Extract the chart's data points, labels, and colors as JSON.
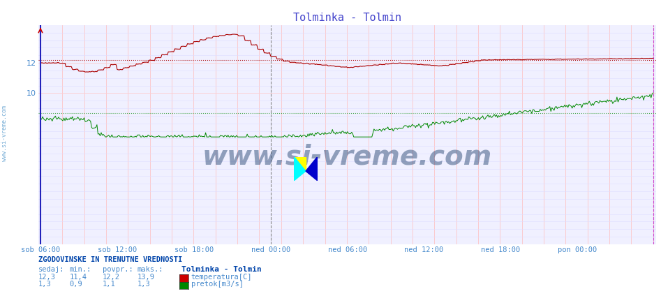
{
  "title": "Tolminka - Tolmin",
  "title_color": "#4444cc",
  "bg_color": "#ffffff",
  "plot_bg_color": "#f0f0ff",
  "grid_color_v": "#ffcccc",
  "grid_color_h": "#ccccff",
  "temp_color": "#aa0000",
  "flow_color": "#008800",
  "avg_temp_color": "#aa0000",
  "avg_flow_color": "#008800",
  "axis_color": "#2222bb",
  "vline_ned_color": "#aaaaaa",
  "vline_pon_color": "#cc00cc",
  "tick_color": "#4488cc",
  "n_points": 576,
  "temp_min": 11.4,
  "temp_max": 13.9,
  "temp_avg": 12.2,
  "temp_current": 12.3,
  "flow_min": 0.9,
  "flow_max": 1.3,
  "flow_avg": 1.1,
  "flow_current": 1.3,
  "ylim_temp": [
    9.5,
    14.2
  ],
  "ylim_flow": [
    0.0,
    1.8
  ],
  "yticks_temp": [
    10,
    12
  ],
  "tick_labels_x": [
    "sob 06:00",
    "sob 12:00",
    "sob 18:00",
    "ned 00:00",
    "ned 06:00",
    "ned 12:00",
    "ned 18:00",
    "pon 00:00"
  ],
  "watermark": "www.si-vreme.com",
  "watermark_color": "#1a3a6a",
  "info_title": "ZGODOVINSKE IN TRENUTNE VREDNOSTI",
  "col_headers": [
    "sedaj:",
    "min.:",
    "povpr.:",
    "maks.:"
  ],
  "legend_title": "Tolminka - Tolmin",
  "legend_entries": [
    "temperatura[C]",
    "pretok[m3/s]"
  ],
  "legend_colors": [
    "#cc0000",
    "#008800"
  ],
  "temp_vals": [
    "12,3",
    "11,4",
    "12,2",
    "13,9"
  ],
  "flow_vals": [
    "1,3",
    "0,9",
    "1,1",
    "1,3"
  ]
}
